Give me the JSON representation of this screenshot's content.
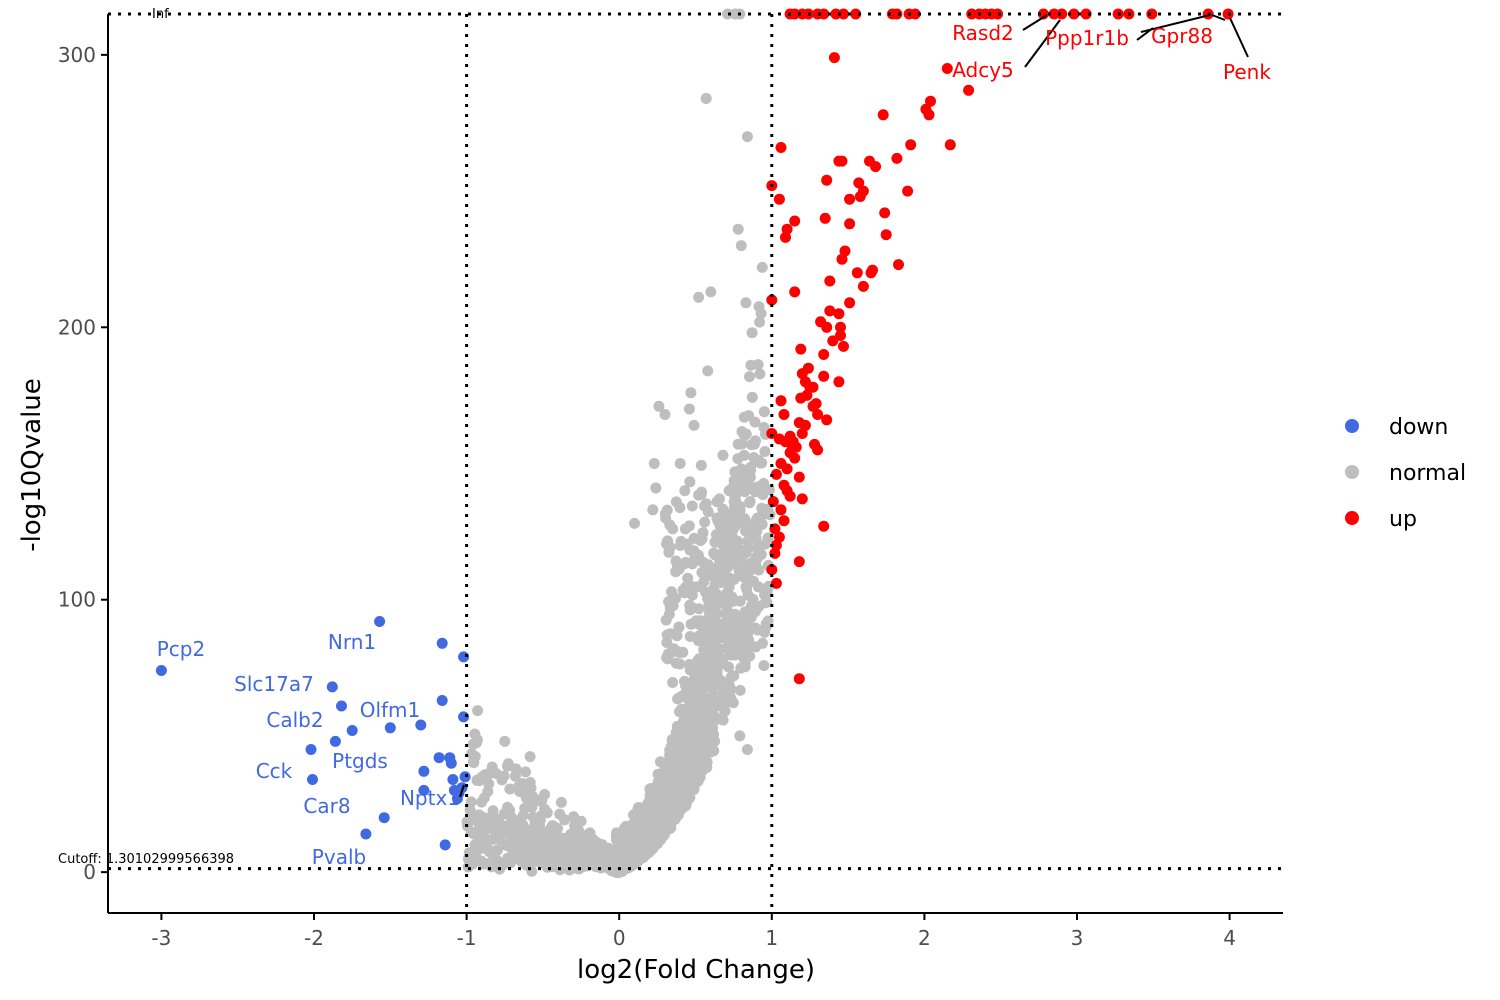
{
  "chart_data": {
    "type": "scatter",
    "title": "",
    "xlabel": "log2(Fold Change)",
    "ylabel": "-log10Qvalue",
    "xlim": [
      -3.35,
      4.35
    ],
    "ylim": [
      -15,
      315
    ],
    "inf_value": 315,
    "xticks": [
      -3,
      -2,
      -1,
      0,
      1,
      2,
      3,
      4
    ],
    "yticks": [
      0,
      100,
      200,
      300
    ],
    "grid": false,
    "legend_position": "right",
    "thresholds": {
      "x": [
        -1,
        1
      ],
      "y": 1.30102999566398
    },
    "annotations": {
      "inf_label": "Inf",
      "cutoff_label": "Cutoff: 1.30102999566398"
    },
    "colors": {
      "down": "#4169E1",
      "normal": "#BEBEBE",
      "up": "#FF0000",
      "axis": "#000000"
    },
    "series": [
      {
        "name": "down",
        "points": [
          [
            -3.0,
            74
          ],
          [
            -2.02,
            45
          ],
          [
            -2.01,
            34
          ],
          [
            -1.88,
            68
          ],
          [
            -1.86,
            48
          ],
          [
            -1.82,
            61
          ],
          [
            -1.75,
            52
          ],
          [
            -1.66,
            14
          ],
          [
            -1.54,
            20
          ],
          [
            -1.57,
            92
          ],
          [
            -1.5,
            53
          ],
          [
            -1.3,
            54
          ],
          [
            -1.28,
            37
          ],
          [
            -1.28,
            30
          ],
          [
            -1.18,
            42
          ],
          [
            -1.16,
            84
          ],
          [
            -1.16,
            63
          ],
          [
            -1.14,
            10
          ],
          [
            -1.11,
            42
          ],
          [
            -1.1,
            40
          ],
          [
            -1.09,
            34
          ],
          [
            -1.06,
            27
          ],
          [
            -1.05,
            29
          ],
          [
            -1.02,
            57
          ],
          [
            -1.02,
            79
          ],
          [
            -1.01,
            35
          ],
          [
            -1.03,
            31
          ],
          [
            -1.08,
            30
          ]
        ]
      },
      {
        "name": "normal",
        "points": []
      },
      {
        "name": "up",
        "points": [
          [
            1.12,
            315
          ],
          [
            1.15,
            315
          ],
          [
            1.2,
            315
          ],
          [
            1.24,
            315
          ],
          [
            1.3,
            315
          ],
          [
            1.34,
            315
          ],
          [
            1.42,
            315
          ],
          [
            1.47,
            315
          ],
          [
            1.55,
            315
          ],
          [
            1.79,
            315
          ],
          [
            1.82,
            315
          ],
          [
            1.9,
            315
          ],
          [
            1.94,
            315
          ],
          [
            2.31,
            315
          ],
          [
            2.36,
            315
          ],
          [
            2.4,
            315
          ],
          [
            2.44,
            315
          ],
          [
            2.48,
            315
          ],
          [
            2.78,
            315
          ],
          [
            2.85,
            315
          ],
          [
            2.9,
            315
          ],
          [
            2.98,
            315
          ],
          [
            3.06,
            315
          ],
          [
            3.27,
            315
          ],
          [
            3.34,
            315
          ],
          [
            3.49,
            315
          ],
          [
            3.86,
            315
          ],
          [
            3.99,
            315
          ],
          [
            1.41,
            299
          ],
          [
            2.15,
            295
          ],
          [
            2.29,
            287
          ],
          [
            2.04,
            283
          ],
          [
            2.01,
            280
          ],
          [
            2.03,
            278
          ],
          [
            1.73,
            278
          ],
          [
            1.91,
            267
          ],
          [
            2.17,
            267
          ],
          [
            1.06,
            266
          ],
          [
            1.82,
            262
          ],
          [
            1.44,
            261
          ],
          [
            1.46,
            261
          ],
          [
            1.64,
            261
          ],
          [
            1.68,
            259
          ],
          [
            1.36,
            254
          ],
          [
            1.57,
            253
          ],
          [
            1.6,
            250
          ],
          [
            1.89,
            250
          ],
          [
            1.0,
            252
          ],
          [
            1.05,
            247
          ],
          [
            1.51,
            247
          ],
          [
            1.58,
            248
          ],
          [
            1.74,
            242
          ],
          [
            1.35,
            240
          ],
          [
            1.15,
            239
          ],
          [
            1.51,
            238
          ],
          [
            1.1,
            236
          ],
          [
            1.09,
            233
          ],
          [
            1.75,
            234
          ],
          [
            1.48,
            228
          ],
          [
            1.46,
            225
          ],
          [
            1.83,
            223
          ],
          [
            1.56,
            220
          ],
          [
            1.66,
            221
          ],
          [
            1.65,
            220
          ],
          [
            1.38,
            217
          ],
          [
            1.6,
            215
          ],
          [
            1.15,
            213
          ],
          [
            1.51,
            209
          ],
          [
            1.0,
            210
          ],
          [
            1.38,
            206
          ],
          [
            1.44,
            205
          ],
          [
            1.45,
            200
          ],
          [
            1.32,
            202
          ],
          [
            1.36,
            200
          ],
          [
            1.45,
            197
          ],
          [
            1.4,
            195
          ],
          [
            1.47,
            193
          ],
          [
            1.19,
            192
          ],
          [
            1.34,
            190
          ],
          [
            1.44,
            180
          ],
          [
            1.34,
            182
          ],
          [
            1.2,
            183
          ],
          [
            1.22,
            180
          ],
          [
            1.25,
            178
          ],
          [
            1.23,
            175
          ],
          [
            1.19,
            174
          ],
          [
            1.27,
            171
          ],
          [
            1.3,
            168
          ],
          [
            1.06,
            173
          ],
          [
            1.08,
            168
          ],
          [
            1.36,
            166
          ],
          [
            1.22,
            164
          ],
          [
            1.2,
            161
          ],
          [
            1.0,
            161
          ],
          [
            1.05,
            159
          ],
          [
            1.09,
            158
          ],
          [
            1.13,
            157
          ],
          [
            1.12,
            154
          ],
          [
            1.28,
            157
          ],
          [
            1.3,
            155
          ],
          [
            1.15,
            152
          ],
          [
            1.06,
            150
          ],
          [
            1.1,
            148
          ],
          [
            1.03,
            146
          ],
          [
            1.18,
            145
          ],
          [
            1.08,
            142
          ],
          [
            1.1,
            140
          ],
          [
            1.12,
            138
          ],
          [
            1.2,
            137
          ],
          [
            1.01,
            136
          ],
          [
            1.06,
            133
          ],
          [
            1.08,
            129
          ],
          [
            1.02,
            126
          ],
          [
            1.05,
            123
          ],
          [
            1.34,
            127
          ],
          [
            1.03,
            120
          ],
          [
            1.02,
            117
          ],
          [
            1.18,
            114
          ],
          [
            1.0,
            111
          ],
          [
            1.03,
            106
          ],
          [
            1.18,
            71
          ],
          [
            1.12,
            160
          ],
          [
            1.14,
            158
          ],
          [
            1.16,
            156
          ],
          [
            1.27,
            178
          ],
          [
            1.24,
            185
          ],
          [
            1.29,
            172
          ],
          [
            1.18,
            165
          ]
        ]
      }
    ],
    "labels": [
      {
        "text": "Pcp2",
        "group": "down"
      },
      {
        "text": "Nrn1",
        "group": "down"
      },
      {
        "text": "Slc17a7",
        "group": "down"
      },
      {
        "text": "Olfm1",
        "group": "down"
      },
      {
        "text": "Calb2",
        "group": "down"
      },
      {
        "text": "Ptgds",
        "group": "down"
      },
      {
        "text": "Cck",
        "group": "down"
      },
      {
        "text": "Nptx1",
        "group": "down"
      },
      {
        "text": "Car8",
        "group": "down"
      },
      {
        "text": "Pvalb",
        "group": "down"
      },
      {
        "text": "Rasd2",
        "group": "up"
      },
      {
        "text": "Ppp1r1b",
        "group": "up"
      },
      {
        "text": "Gpr88",
        "group": "up"
      },
      {
        "text": "Adcy5",
        "group": "up"
      },
      {
        "text": "Penk",
        "group": "up"
      }
    ]
  }
}
